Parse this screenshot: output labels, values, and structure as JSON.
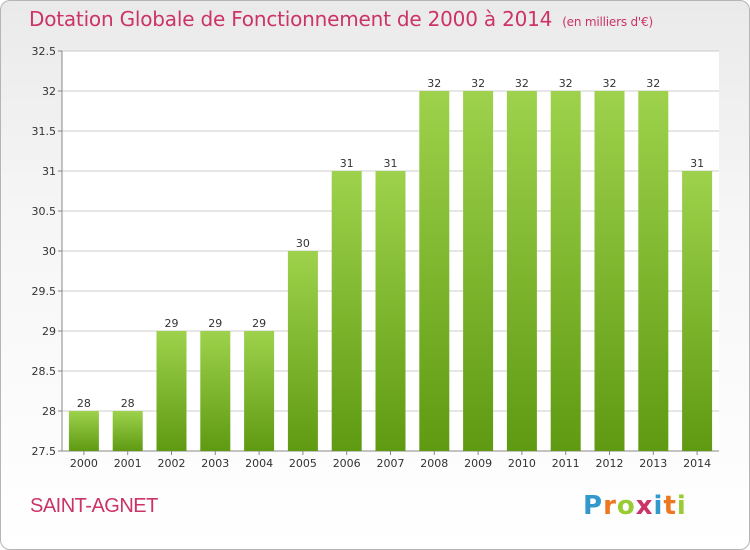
{
  "title": "Dotation Globale de Fonctionnement de 2000 à 2014",
  "unit": "(en milliers d'€)",
  "commune": "SAINT-AGNET",
  "logo": {
    "letters": [
      "P",
      "r",
      "o",
      "x",
      "i",
      "t",
      "i"
    ],
    "colors": [
      "#3399cc",
      "#ee7722",
      "#99cc33",
      "#cc3366",
      "#3399cc",
      "#ee7722",
      "#99cc33"
    ]
  },
  "colors": {
    "bar_light": "#9ed24c",
    "bar_dark": "#5f9a12",
    "title": "#cc3366",
    "grid": "#cccccc"
  },
  "chart_data": {
    "type": "bar",
    "title": "Dotation Globale de Fonctionnement de 2000 à 2014",
    "subtitle": "(en milliers d'€)",
    "categories": [
      "2000",
      "2001",
      "2002",
      "2003",
      "2004",
      "2005",
      "2006",
      "2007",
      "2008",
      "2009",
      "2010",
      "2011",
      "2012",
      "2013",
      "2014"
    ],
    "values": [
      28,
      28,
      29,
      29,
      29,
      30,
      31,
      31,
      32,
      32,
      32,
      32,
      32,
      32,
      31
    ],
    "yticks": [
      "27.5",
      "28",
      "28.5",
      "29",
      "29.5",
      "30",
      "30.5",
      "31",
      "31.5",
      "32",
      "32.5"
    ],
    "ylim": [
      27.5,
      32.5
    ],
    "grid": true,
    "xlabel": "",
    "ylabel": ""
  }
}
